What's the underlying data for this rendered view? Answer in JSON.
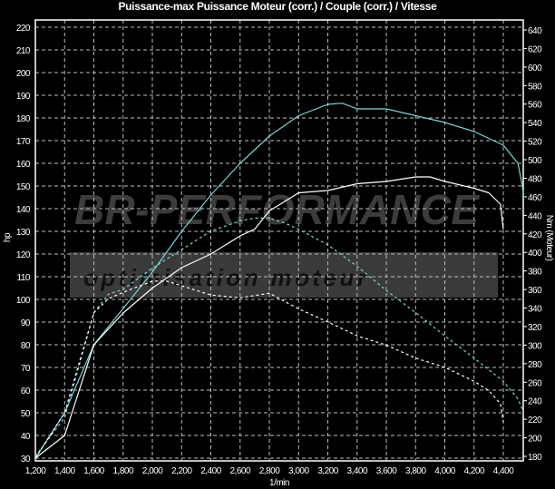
{
  "chart_data": {
    "type": "line",
    "title": "Puissance-max Puissance Moteur (corr.) / Couple (corr.) / Vitesse",
    "xlabel": "1/min",
    "ylabel": "hp",
    "y2label": "Nm (Moteur)",
    "xlim": [
      1200,
      4540
    ],
    "ylim": [
      30,
      220
    ],
    "y2lim": [
      180,
      640
    ],
    "grid": true,
    "xticks": [
      "1,200",
      "1,400",
      "1,600",
      "1,800",
      "2,000",
      "2,200",
      "2,400",
      "2,600",
      "2,800",
      "3,000",
      "3,200",
      "3,400",
      "3,600",
      "3,800",
      "4,000",
      "4,200",
      "4,400"
    ],
    "yticks": [
      30,
      40,
      50,
      60,
      70,
      80,
      90,
      100,
      110,
      120,
      130,
      140,
      150,
      160,
      170,
      180,
      190,
      200,
      210,
      220
    ],
    "y2ticks": [
      180,
      200,
      220,
      240,
      260,
      280,
      300,
      320,
      340,
      360,
      380,
      400,
      420,
      440,
      460,
      480,
      500,
      520,
      540,
      560,
      580,
      600,
      620,
      640
    ],
    "watermark": {
      "line1": "BR-PERFORMANCE",
      "line2": "optimisation moteur"
    },
    "series": [
      {
        "axis": "left",
        "color": "#7fd3d3",
        "dash": false,
        "x": [
          1200,
          1400,
          1600,
          1800,
          2000,
          2200,
          2400,
          2600,
          2800,
          3000,
          3200,
          3300,
          3400,
          3600,
          3800,
          4000,
          4200,
          4400,
          4500,
          4530,
          4540
        ],
        "y": [
          30,
          50,
          80,
          96,
          112,
          130,
          146,
          160,
          172,
          181,
          186,
          186.5,
          184,
          184,
          181,
          178,
          174,
          168,
          160,
          150,
          145
        ]
      },
      {
        "axis": "left",
        "color": "#ffffff",
        "dash": false,
        "x": [
          1200,
          1400,
          1600,
          1800,
          2000,
          2200,
          2400,
          2600,
          2700,
          2800,
          3000,
          3200,
          3400,
          3600,
          3800,
          3900,
          4000,
          4200,
          4300,
          4380,
          4400
        ],
        "y": [
          30,
          40,
          80,
          94,
          105,
          114,
          120,
          128,
          131,
          139,
          147,
          148,
          151,
          152,
          154,
          154,
          152,
          149,
          147,
          142,
          131
        ]
      },
      {
        "axis": "right",
        "color": "#7fd3d3",
        "dash": true,
        "x": [
          1200,
          1400,
          1600,
          1700,
          1800,
          2000,
          2200,
          2400,
          2600,
          2700,
          2800,
          2900,
          3000,
          3200,
          3400,
          3600,
          3800,
          4000,
          4200,
          4400,
          4500,
          4540
        ],
        "y": [
          180,
          222,
          335,
          355,
          360,
          383,
          403,
          423,
          434,
          437,
          437,
          432,
          425,
          408,
          385,
          359,
          335,
          310,
          286,
          261,
          242,
          227
        ]
      },
      {
        "axis": "right",
        "color": "#ffffff",
        "dash": true,
        "x": [
          1200,
          1400,
          1600,
          1700,
          1800,
          2000,
          2100,
          2200,
          2400,
          2600,
          2800,
          3000,
          3200,
          3400,
          3600,
          3800,
          4000,
          4200,
          4300,
          4380,
          4400
        ],
        "y": [
          178,
          227,
          335,
          350,
          357,
          369,
          369,
          364,
          354,
          351,
          356,
          339,
          325,
          310,
          300,
          286,
          276,
          261,
          251,
          237,
          217
        ]
      }
    ]
  }
}
